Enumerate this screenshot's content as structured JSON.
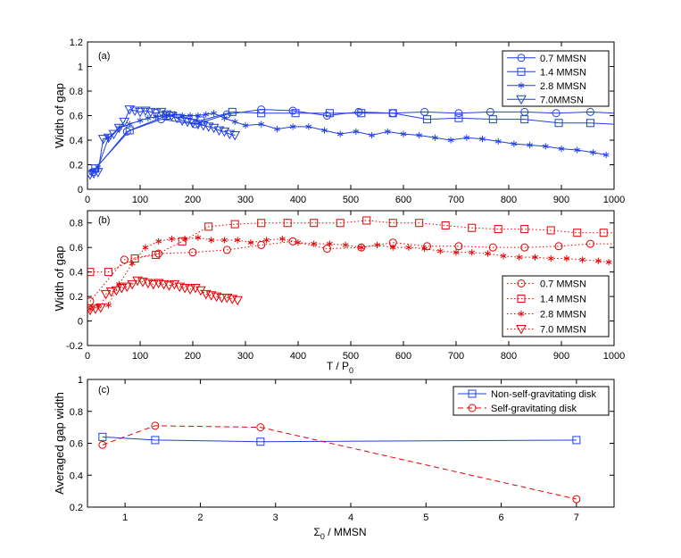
{
  "chart_data": [
    {
      "panel": "a",
      "type": "line",
      "label": "(a)",
      "xlabel": "",
      "ylabel": "Width of gap",
      "xlim": [
        0,
        1000
      ],
      "ylim": [
        0,
        1.2
      ],
      "xticks": [
        0,
        100,
        200,
        300,
        400,
        500,
        600,
        700,
        800,
        900,
        1000
      ],
      "yticks": [
        0,
        0.2,
        0.4,
        0.6,
        0.8,
        1,
        1.2
      ],
      "ytick_labels": [
        "0",
        "0.2",
        "0.4",
        "0.6",
        "0.8",
        "1",
        "1.2"
      ],
      "legend_position": "top-right",
      "series": [
        {
          "name": "0.7 MMSN",
          "marker": "circle",
          "style": "solid",
          "color": "#1f3fe6",
          "x": [
            5,
            10,
            75,
            140,
            205,
            265,
            330,
            390,
            455,
            515,
            580,
            640,
            705,
            765,
            830,
            890,
            955,
            1000
          ],
          "y": [
            0.12,
            0.14,
            0.47,
            0.57,
            0.53,
            0.61,
            0.65,
            0.64,
            0.6,
            0.63,
            0.62,
            0.63,
            0.62,
            0.63,
            0.63,
            0.62,
            0.63,
            0.62
          ],
          "markers_x": [
            10,
            75,
            140,
            205,
            265,
            330,
            390,
            455,
            515,
            580,
            640,
            705,
            765,
            830,
            890,
            955
          ]
        },
        {
          "name": "1.4 MMSN",
          "marker": "square",
          "style": "solid",
          "color": "#1f3fe6",
          "x": [
            5,
            15,
            80,
            150,
            215,
            275,
            330,
            395,
            460,
            520,
            580,
            645,
            705,
            770,
            830,
            895,
            955,
            1000
          ],
          "y": [
            0.14,
            0.17,
            0.48,
            0.6,
            0.56,
            0.63,
            0.62,
            0.62,
            0.62,
            0.62,
            0.62,
            0.57,
            0.58,
            0.57,
            0.57,
            0.54,
            0.54,
            0.53
          ],
          "markers_x": [
            15,
            80,
            150,
            215,
            275,
            330,
            395,
            460,
            520,
            580,
            645,
            705,
            770,
            830,
            895,
            955
          ]
        },
        {
          "name": "2.8 MMSN",
          "marker": "star",
          "style": "solid",
          "color": "#1f3fe6",
          "x": [
            5,
            20,
            40,
            60,
            80,
            100,
            115,
            130,
            150,
            165,
            180,
            195,
            210,
            225,
            240,
            260,
            280,
            300,
            330,
            360,
            390,
            420,
            450,
            480,
            510,
            540,
            570,
            600,
            630,
            660,
            690,
            720,
            750,
            780,
            810,
            840,
            870,
            900,
            930,
            960,
            985
          ],
          "y": [
            0.15,
            0.18,
            0.42,
            0.5,
            0.53,
            0.56,
            0.58,
            0.59,
            0.6,
            0.61,
            0.6,
            0.6,
            0.6,
            0.61,
            0.62,
            0.58,
            0.55,
            0.52,
            0.53,
            0.49,
            0.51,
            0.51,
            0.48,
            0.45,
            0.47,
            0.44,
            0.47,
            0.45,
            0.44,
            0.42,
            0.4,
            0.42,
            0.41,
            0.39,
            0.37,
            0.36,
            0.35,
            0.33,
            0.32,
            0.3,
            0.28
          ],
          "markers_x": [
            20,
            40,
            60,
            80,
            100,
            115,
            130,
            150,
            165,
            180,
            195,
            210,
            225,
            240,
            260,
            280,
            300,
            330,
            360,
            390,
            420,
            450,
            480,
            510,
            540,
            570,
            600,
            630,
            660,
            690,
            720,
            750,
            780,
            810,
            840,
            870,
            900,
            930,
            960,
            985
          ]
        },
        {
          "name": "7.0MMSN",
          "marker": "triangle-down",
          "style": "solid",
          "color": "#1f3fe6",
          "x": [
            5,
            12,
            20,
            30,
            40,
            50,
            60,
            70,
            80,
            90,
            100,
            110,
            120,
            130,
            140,
            150,
            160,
            170,
            180,
            190,
            200,
            210,
            220,
            230,
            240,
            250,
            260,
            270,
            280
          ],
          "y": [
            0.12,
            0.13,
            0.14,
            0.41,
            0.42,
            0.45,
            0.5,
            0.55,
            0.65,
            0.64,
            0.63,
            0.64,
            0.63,
            0.62,
            0.63,
            0.61,
            0.6,
            0.58,
            0.56,
            0.55,
            0.54,
            0.53,
            0.52,
            0.51,
            0.5,
            0.48,
            0.47,
            0.45,
            0.44
          ],
          "markers_x": [
            5,
            12,
            20,
            30,
            40,
            50,
            60,
            70,
            80,
            90,
            100,
            110,
            120,
            130,
            140,
            150,
            160,
            170,
            180,
            190,
            200,
            210,
            220,
            230,
            240,
            250,
            260,
            270,
            280
          ]
        }
      ]
    },
    {
      "panel": "b",
      "type": "line",
      "label": "(b)",
      "xlabel": "T / P",
      "xlabel_sub": "0",
      "ylabel": "Width of gap",
      "xlim": [
        0,
        1000
      ],
      "ylim": [
        -0.2,
        0.9
      ],
      "xticks": [
        0,
        100,
        200,
        300,
        400,
        500,
        600,
        700,
        800,
        900,
        1000
      ],
      "yticks": [
        -0.2,
        0,
        0.2,
        0.4,
        0.6,
        0.8
      ],
      "ytick_labels": [
        "-0.2",
        "0",
        "0.2",
        "0.4",
        "0.6",
        "0.8"
      ],
      "legend_position": "bottom-right",
      "series": [
        {
          "name": "0.7 MMSN",
          "marker": "circle",
          "style": "dotted",
          "color": "#e60000",
          "x": [
            5,
            70,
            135,
            200,
            265,
            330,
            390,
            455,
            520,
            580,
            645,
            705,
            770,
            830,
            895,
            955,
            1000
          ],
          "y": [
            0.16,
            0.5,
            0.55,
            0.56,
            0.58,
            0.62,
            0.65,
            0.59,
            0.6,
            0.64,
            0.61,
            0.61,
            0.6,
            0.6,
            0.61,
            0.63,
            0.63
          ],
          "markers_x": [
            5,
            70,
            135,
            200,
            265,
            330,
            390,
            455,
            520,
            580,
            645,
            705,
            770,
            830,
            895,
            955
          ]
        },
        {
          "name": "1.4 MMSN",
          "marker": "square",
          "style": "dotted",
          "color": "#e60000",
          "x": [
            5,
            40,
            90,
            130,
            180,
            230,
            280,
            330,
            380,
            430,
            480,
            530,
            580,
            630,
            680,
            730,
            780,
            830,
            880,
            930,
            980,
            1000
          ],
          "y": [
            0.4,
            0.4,
            0.51,
            0.54,
            0.65,
            0.77,
            0.79,
            0.8,
            0.8,
            0.8,
            0.8,
            0.82,
            0.8,
            0.8,
            0.78,
            0.76,
            0.75,
            0.75,
            0.74,
            0.72,
            0.72,
            0.72
          ],
          "markers_x": [
            5,
            40,
            90,
            130,
            180,
            230,
            280,
            330,
            380,
            430,
            480,
            530,
            580,
            630,
            680,
            730,
            780,
            830,
            880,
            930,
            980
          ]
        },
        {
          "name": "2.8 MMSN",
          "marker": "star",
          "style": "dotted",
          "color": "#e60000",
          "x": [
            5,
            20,
            40,
            60,
            85,
            110,
            135,
            160,
            185,
            210,
            235,
            260,
            285,
            310,
            340,
            370,
            400,
            430,
            460,
            490,
            520,
            550,
            580,
            610,
            640,
            670,
            700,
            730,
            760,
            790,
            820,
            850,
            880,
            910,
            940,
            970,
            990
          ],
          "y": [
            0.1,
            0.12,
            0.13,
            0.3,
            0.47,
            0.6,
            0.65,
            0.67,
            0.67,
            0.68,
            0.66,
            0.66,
            0.66,
            0.64,
            0.66,
            0.67,
            0.64,
            0.63,
            0.63,
            0.62,
            0.6,
            0.62,
            0.6,
            0.6,
            0.59,
            0.57,
            0.56,
            0.56,
            0.55,
            0.53,
            0.52,
            0.52,
            0.51,
            0.51,
            0.5,
            0.49,
            0.48
          ],
          "markers_x": [
            5,
            20,
            40,
            60,
            85,
            110,
            135,
            160,
            185,
            210,
            235,
            260,
            285,
            310,
            340,
            370,
            400,
            430,
            460,
            490,
            520,
            550,
            580,
            610,
            640,
            670,
            700,
            730,
            760,
            790,
            820,
            850,
            880,
            910,
            940,
            970,
            990
          ]
        },
        {
          "name": "7.0 MMSN",
          "marker": "triangle-down",
          "style": "dotted",
          "color": "#e60000",
          "x": [
            5,
            15,
            25,
            35,
            45,
            55,
            65,
            75,
            85,
            95,
            105,
            115,
            125,
            135,
            145,
            155,
            165,
            175,
            185,
            195,
            205,
            215,
            225,
            235,
            245,
            255,
            265,
            275,
            285
          ],
          "y": [
            0.09,
            0.1,
            0.11,
            0.22,
            0.24,
            0.25,
            0.27,
            0.28,
            0.3,
            0.33,
            0.32,
            0.31,
            0.3,
            0.31,
            0.3,
            0.29,
            0.3,
            0.28,
            0.27,
            0.26,
            0.27,
            0.25,
            0.22,
            0.21,
            0.2,
            0.19,
            0.19,
            0.18,
            0.17
          ],
          "markers_x": [
            5,
            15,
            25,
            35,
            45,
            55,
            65,
            75,
            85,
            95,
            105,
            115,
            125,
            135,
            145,
            155,
            165,
            175,
            185,
            195,
            205,
            215,
            225,
            235,
            245,
            255,
            265,
            275,
            285
          ]
        }
      ]
    },
    {
      "panel": "c",
      "type": "line",
      "label": "(c)",
      "xlabel": "Σ",
      "xlabel_sub": "0",
      "xlabel_rest": " / MMSN",
      "ylabel": "Averaged gap width",
      "xlim": [
        0.5,
        7.5
      ],
      "ylim": [
        0.2,
        1
      ],
      "xticks": [
        1,
        2,
        3,
        4,
        5,
        6,
        7
      ],
      "yticks": [
        0.2,
        0.4,
        0.6,
        0.8,
        1
      ],
      "ytick_labels": [
        "0.2",
        "0.4",
        "0.6",
        "0.8",
        "1"
      ],
      "legend_position": "top-right",
      "series": [
        {
          "name": "Non-self-gravitating disk",
          "marker": "square",
          "style": "solid",
          "color": "#1f3fe6",
          "x": [
            0.7,
            1.4,
            2.8,
            7.0
          ],
          "y": [
            0.64,
            0.62,
            0.61,
            0.62
          ]
        },
        {
          "name": "Self-gravitating disk",
          "marker": "circle",
          "style": "dashed",
          "color": "#e60000",
          "x": [
            0.7,
            1.4,
            2.8,
            7.0
          ],
          "y": [
            0.59,
            0.71,
            0.7,
            0.25
          ]
        }
      ]
    }
  ]
}
